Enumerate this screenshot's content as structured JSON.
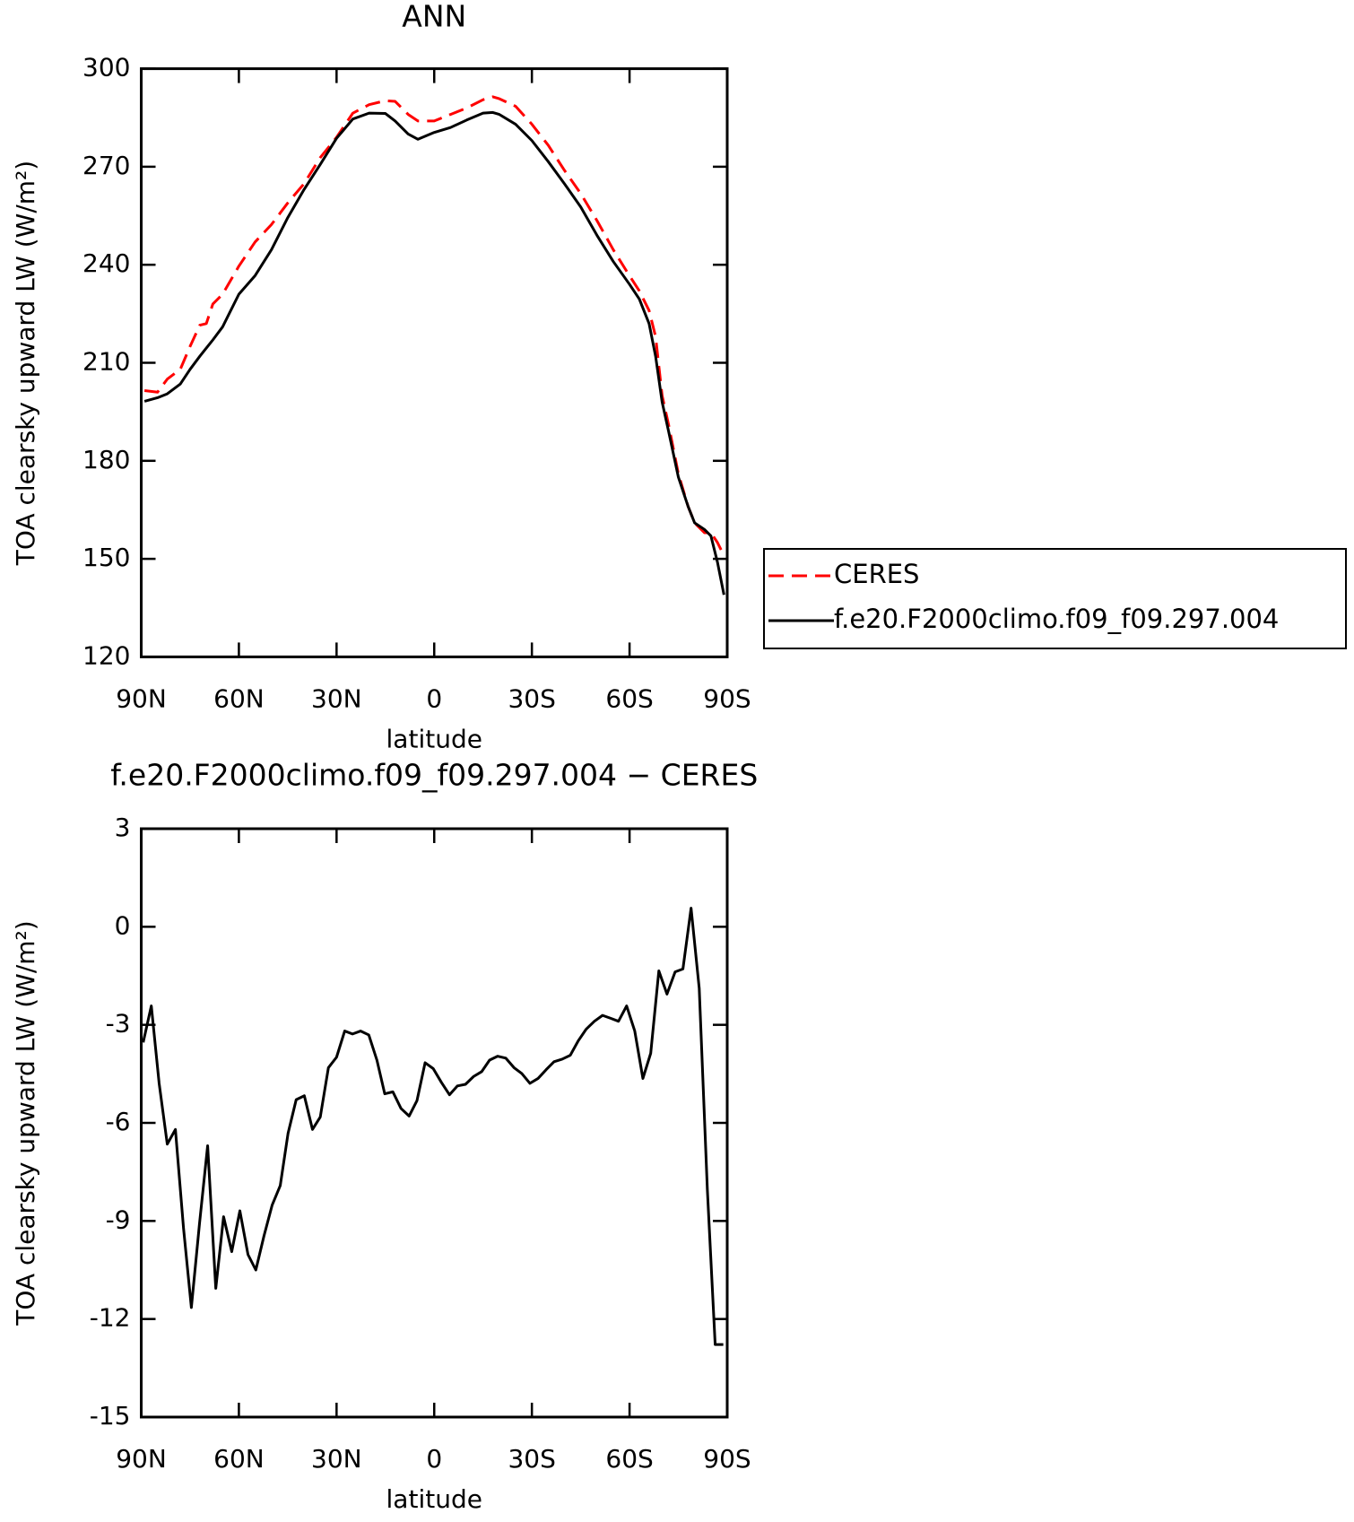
{
  "chart_data": [
    {
      "type": "line",
      "title": "ANN",
      "xlabel": "latitude",
      "ylabel": "TOA clearsky upward LW (W/m²)",
      "x": [
        89,
        85,
        82,
        78,
        75,
        72,
        70,
        68,
        65,
        60,
        55,
        50,
        45,
        40,
        35,
        30,
        25,
        20,
        15,
        12,
        8,
        5,
        0,
        -5,
        -10,
        -15,
        -18,
        -20,
        -25,
        -30,
        -35,
        -40,
        -45,
        -50,
        -55,
        -60,
        -63,
        -66,
        -68,
        -70,
        -72,
        -75,
        -78,
        -80,
        -83,
        -85,
        -87,
        -89
      ],
      "series": [
        {
          "name": "CERES",
          "color": "#ff0000",
          "dash": true,
          "values": [
            201.5,
            201,
            205,
            208,
            215,
            221.5,
            222,
            228,
            231,
            239.6,
            247,
            252.3,
            258.9,
            264.8,
            272.8,
            279,
            286.4,
            289,
            290.2,
            290,
            286,
            284,
            284,
            286,
            288,
            290.5,
            291.4,
            290.8,
            288.5,
            283,
            276.6,
            268.9,
            261.8,
            253.5,
            244.6,
            236.6,
            232,
            226,
            218,
            200,
            191,
            176,
            166,
            161,
            158,
            158,
            155,
            151
          ]
        },
        {
          "name": "f.e20.F2000climo.f09_f09.297.004",
          "color": "#000000",
          "dash": false,
          "values": [
            198.2,
            199.3,
            200.5,
            203.5,
            208,
            212,
            214.5,
            217,
            221,
            231,
            236.7,
            244.6,
            254.4,
            263,
            270.7,
            278.7,
            284.6,
            286.4,
            286.3,
            284,
            280,
            278.4,
            280.5,
            282,
            284.3,
            286.4,
            286.6,
            286,
            283,
            278,
            271.6,
            264.8,
            257.7,
            249,
            241,
            234,
            229.5,
            222,
            212,
            198,
            189,
            175,
            166,
            161,
            159,
            157,
            149,
            139
          ]
        }
      ],
      "xlim": [
        90,
        -90
      ],
      "xticks": [
        {
          "value": 90,
          "label": "90N"
        },
        {
          "value": 60,
          "label": "60N"
        },
        {
          "value": 30,
          "label": "30N"
        },
        0,
        {
          "value": -30,
          "label": "30S"
        },
        {
          "value": -60,
          "label": "60S"
        },
        {
          "value": -90,
          "label": "90S"
        }
      ],
      "ylim": [
        120,
        300
      ],
      "yticks": [
        120,
        150,
        180,
        210,
        240,
        270,
        300
      ],
      "legend": "outside-right"
    },
    {
      "type": "line",
      "title": "f.e20.F2000climo.f09_f09.297.004 − CERES",
      "xlabel": "latitude",
      "ylabel": "TOA clearsky upward LW (W/m²)",
      "x": [
        89.4,
        86.9,
        84.5,
        82.0,
        79.5,
        77.0,
        74.6,
        72.1,
        69.6,
        67.1,
        64.7,
        62.2,
        59.7,
        57.2,
        54.8,
        52.3,
        49.8,
        47.3,
        44.9,
        42.4,
        39.9,
        37.4,
        35.0,
        32.5,
        30.0,
        27.5,
        25.1,
        22.6,
        20.1,
        17.6,
        15.2,
        12.7,
        10.2,
        7.7,
        5.3,
        2.8,
        0.3,
        -2.2,
        -4.7,
        -7.1,
        -9.6,
        -12.1,
        -14.6,
        -17.0,
        -19.5,
        -22.0,
        -24.5,
        -26.9,
        -29.4,
        -31.9,
        -34.4,
        -36.8,
        -39.3,
        -41.8,
        -44.3,
        -46.7,
        -49.2,
        -51.7,
        -54.2,
        -56.6,
        -59.1,
        -61.6,
        -64.1,
        -66.5,
        -69.0,
        -71.5,
        -74.0,
        -76.4,
        -78.9,
        -81.4,
        -83.9,
        -86.3,
        -88.8
      ],
      "series": [
        {
          "color": "#000000",
          "dash": false,
          "values": [
            -3.54,
            -2.42,
            -4.79,
            -6.65,
            -6.2,
            -9.23,
            -11.65,
            -9.08,
            -6.7,
            -11.06,
            -8.87,
            -9.94,
            -8.69,
            -10.03,
            -10.5,
            -9.46,
            -8.52,
            -7.92,
            -6.32,
            -5.29,
            -5.17,
            -6.2,
            -5.82,
            -4.31,
            -3.99,
            -3.19,
            -3.28,
            -3.19,
            -3.31,
            -4.08,
            -5.11,
            -5.05,
            -5.56,
            -5.79,
            -5.32,
            -4.16,
            -4.34,
            -4.76,
            -5.14,
            -4.87,
            -4.82,
            -4.58,
            -4.43,
            -4.08,
            -3.96,
            -4.02,
            -4.31,
            -4.49,
            -4.79,
            -4.64,
            -4.37,
            -4.13,
            -4.05,
            -3.93,
            -3.48,
            -3.13,
            -2.89,
            -2.71,
            -2.8,
            -2.89,
            -2.42,
            -3.19,
            -4.64,
            -3.87,
            -1.35,
            -2.06,
            -1.38,
            -1.29,
            0.57,
            -1.88,
            -8.04,
            -12.78,
            -12.78
          ]
        }
      ],
      "xlim": [
        90,
        -90
      ],
      "xticks": [
        {
          "value": 90,
          "label": "90N"
        },
        {
          "value": 60,
          "label": "60N"
        },
        {
          "value": 30,
          "label": "30N"
        },
        0,
        {
          "value": -30,
          "label": "30S"
        },
        {
          "value": -60,
          "label": "60S"
        },
        {
          "value": -90,
          "label": "90S"
        }
      ],
      "ylim": [
        -15,
        3
      ],
      "yticks": [
        -15,
        -12,
        -9,
        -6,
        -3,
        0,
        3
      ]
    }
  ]
}
